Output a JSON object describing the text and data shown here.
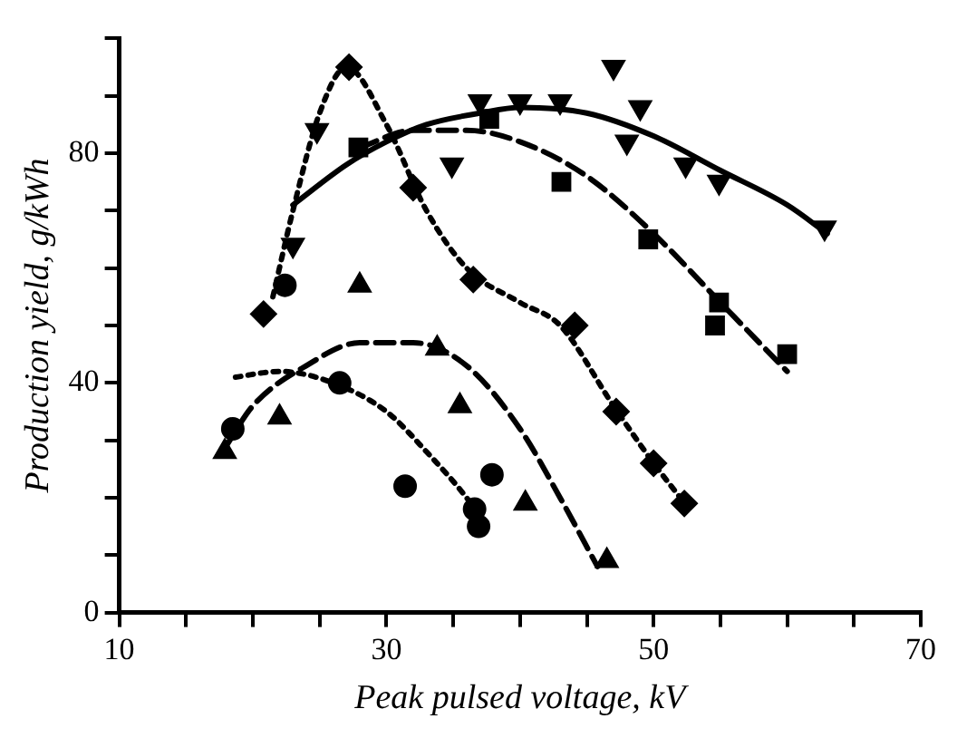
{
  "chart_data": {
    "type": "scatter",
    "xlabel": "Peak pulsed voltage, kV",
    "ylabel": "Production yield, g/kWh",
    "xlim": [
      10,
      70
    ],
    "xticks": [
      10,
      {
        "value": 15,
        "label": null
      },
      {
        "value": 20,
        "label": null
      },
      {
        "value": 25,
        "label": null
      },
      30,
      {
        "value": 35,
        "label": null
      },
      {
        "value": 40,
        "label": null
      },
      {
        "value": 45,
        "label": null
      },
      50,
      {
        "value": 55,
        "label": null
      },
      {
        "value": 60,
        "label": null
      },
      {
        "value": 65,
        "label": null
      },
      70
    ],
    "ylim": [
      0,
      100
    ],
    "yticks": [
      0,
      {
        "value": 10,
        "label": null
      },
      {
        "value": 20,
        "label": null
      },
      {
        "value": 30,
        "label": null
      },
      40,
      {
        "value": 50,
        "label": null
      },
      {
        "value": 60,
        "label": null
      },
      {
        "value": 70,
        "label": null
      },
      80,
      {
        "value": 90,
        "label": null
      },
      {
        "value": 100,
        "label": null
      }
    ],
    "grid": false,
    "legend": false,
    "series": [
      {
        "type": "scatter",
        "marker": "triangle-down",
        "color": "#000000",
        "x": [
          23.0,
          24.8,
          34.9,
          37,
          40,
          43,
          47,
          48,
          49,
          52.4,
          54.9,
          62.8
        ],
        "values": [
          64,
          84,
          78,
          89,
          89,
          89,
          95,
          82,
          88,
          78,
          75,
          67
        ]
      },
      {
        "type": "line",
        "line_style": "solid",
        "marker": "none",
        "color": "#000000",
        "x": [
          23,
          27,
          30,
          33,
          37,
          40,
          45,
          50,
          55,
          60,
          63
        ],
        "values": [
          71,
          78,
          82,
          85,
          87,
          88,
          87,
          83,
          77,
          71,
          66
        ]
      },
      {
        "type": "scatter",
        "marker": "square",
        "color": "#000000",
        "x": [
          27.9,
          37.7,
          43.1,
          49.6,
          54.9,
          54.6,
          60
        ],
        "values": [
          81,
          86,
          75,
          65,
          54,
          50,
          45
        ]
      },
      {
        "type": "line",
        "line_style": "dashed",
        "marker": "none",
        "color": "#000000",
        "x": [
          28,
          32,
          36,
          40,
          45,
          50,
          55,
          60
        ],
        "values": [
          81,
          84,
          84,
          82,
          76,
          66,
          54,
          42
        ]
      },
      {
        "type": "scatter",
        "marker": "diamond",
        "color": "#000000",
        "x": [
          20.8,
          27.2,
          32,
          36.5,
          44.1,
          47.2,
          50,
          52.3
        ],
        "values": [
          52,
          95,
          74,
          58,
          50,
          35,
          26,
          19
        ]
      },
      {
        "type": "line",
        "line_style": "dotted",
        "marker": "none",
        "color": "#000000",
        "x": [
          21.5,
          23,
          25,
          27,
          30,
          33,
          36,
          40,
          43,
          47,
          50,
          52
        ],
        "values": [
          55,
          70,
          87,
          95,
          85,
          70,
          60,
          54,
          50,
          36,
          26,
          20
        ]
      },
      {
        "type": "scatter",
        "marker": "circle",
        "color": "#000000",
        "x": [
          18.5,
          22.4,
          26.5,
          31.4,
          36.6,
          36.9,
          37.9
        ],
        "values": [
          32,
          57,
          40,
          22,
          18,
          15,
          24
        ]
      },
      {
        "type": "line",
        "line_style": "dotted",
        "marker": "none",
        "color": "#000000",
        "x": [
          18.7,
          22,
          26,
          30,
          33,
          36,
          37.5
        ],
        "values": [
          41,
          42,
          40,
          35,
          28,
          20,
          15
        ]
      },
      {
        "type": "scatter",
        "marker": "triangle",
        "color": "#000000",
        "x": [
          17.9,
          22,
          28,
          33.8,
          35.5,
          40.4,
          46.5
        ],
        "values": [
          28,
          34,
          57,
          46,
          36,
          19,
          9
        ]
      },
      {
        "type": "line",
        "line_style": "dashed",
        "marker": "none",
        "color": "#000000",
        "x": [
          18,
          20,
          24,
          28,
          32,
          36,
          40,
          43,
          45.8
        ],
        "values": [
          29,
          36,
          43,
          47,
          47,
          43,
          32,
          20,
          8
        ]
      }
    ]
  }
}
